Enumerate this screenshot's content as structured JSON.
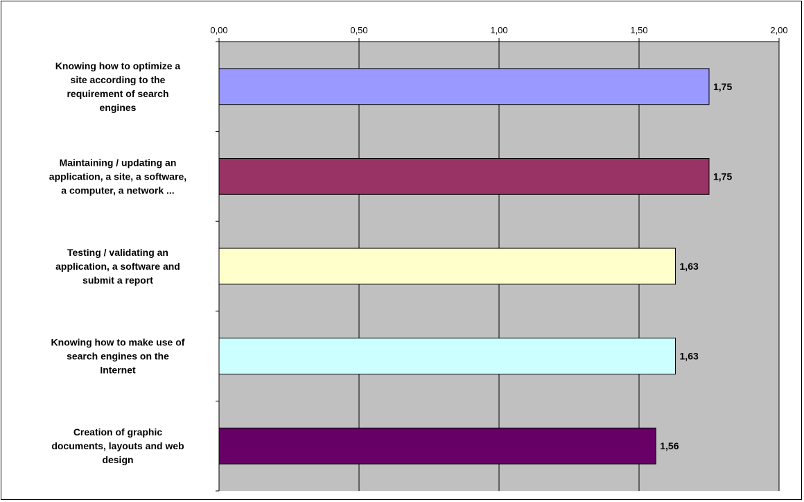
{
  "chart_data": {
    "type": "bar",
    "orientation": "horizontal",
    "title": "",
    "xlabel": "",
    "ylabel": "",
    "xlim": [
      0,
      2
    ],
    "ticks": [
      "0,00",
      "0,50",
      "1,00",
      "1,50",
      "2,00"
    ],
    "tick_values": [
      0,
      0.5,
      1,
      1.5,
      2
    ],
    "grid": true,
    "legend": "none",
    "plot_background": "#c0c0c0",
    "categories": [
      [
        "Knowing how to optimize a",
        "site according to the",
        "requirement of search",
        "engines"
      ],
      [
        "Maintaining / updating an",
        "application, a site, a software,",
        "a computer, a network ..."
      ],
      [
        "Testing / validating an",
        "application, a software and",
        "submit a report"
      ],
      [
        "Knowing how to make use of",
        "search engines on the",
        "Internet"
      ],
      [
        "Creation of graphic",
        "documents, layouts and web",
        "design"
      ]
    ],
    "values": [
      1.75,
      1.75,
      1.63,
      1.63,
      1.56
    ],
    "value_labels": [
      "1,75",
      "1,75",
      "1,63",
      "1,63",
      "1,56"
    ],
    "colors": [
      "#9999ff",
      "#993366",
      "#ffffcc",
      "#ccffff",
      "#660066"
    ]
  }
}
